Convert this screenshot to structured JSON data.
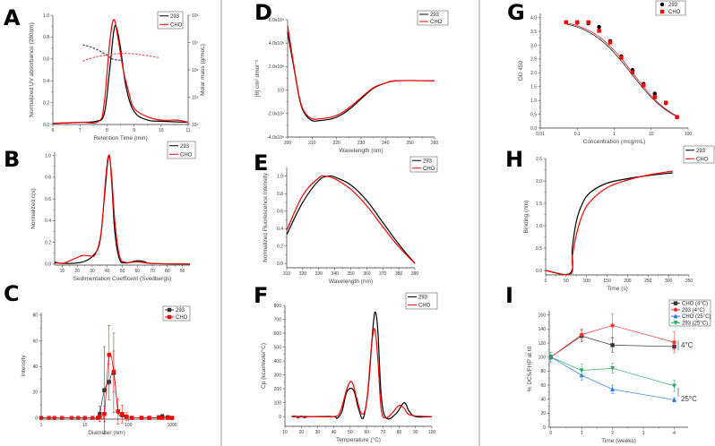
{
  "chart_data": [
    {
      "id": "A",
      "type": "line",
      "panel_label": "A",
      "xlabel": "Retention Time (min)",
      "ylabel": "Normalized UV absorbance (280nm)",
      "y2label": "Molar mass (g/moL)",
      "xlim": [
        6,
        11
      ],
      "ylim": [
        0,
        1.0
      ],
      "y2lim_log10": [
        4,
        8
      ],
      "xtick_labels": [
        "6",
        "7",
        "8",
        "9",
        "10",
        "11"
      ],
      "ytick_labels": [
        "0.0",
        "0.2",
        "0.4",
        "0.6",
        "0.8",
        "1.0"
      ],
      "y2tick_labels": [
        "10⁴",
        "10⁵",
        "10⁶",
        "10⁷",
        "10⁸"
      ],
      "y2tick_values": [
        4,
        5,
        6,
        7,
        8
      ],
      "legend": [
        "293",
        "CHO"
      ],
      "series": [
        {
          "name": "293",
          "color": "#000000",
          "x": [
            6,
            7,
            7.6,
            7.9,
            8.1,
            8.25,
            8.35,
            8.5,
            8.7,
            9,
            9.5,
            10,
            11
          ],
          "y": [
            0.01,
            0.02,
            0.03,
            0.1,
            0.5,
            0.85,
            0.89,
            0.7,
            0.35,
            0.12,
            0.04,
            0.03,
            0.02
          ]
        },
        {
          "name": "CHO",
          "color": "#ff0000",
          "x": [
            6,
            7,
            7.7,
            7.9,
            8.1,
            8.25,
            8.4,
            8.6,
            8.8,
            9,
            9.5,
            10,
            10.6,
            11
          ],
          "y": [
            0.01,
            0.02,
            0.03,
            0.2,
            0.75,
            0.96,
            0.8,
            0.5,
            0.3,
            0.15,
            0.07,
            0.04,
            0.04,
            0.02
          ]
        },
        {
          "name": "293 molar mass",
          "color": "#444444",
          "dash": true,
          "axis": "right",
          "x": [
            7.1,
            7.5,
            7.9,
            8.2,
            8.5
          ],
          "y": [
            6.92,
            6.8,
            6.6,
            6.4,
            6.35
          ]
        },
        {
          "name": "CHO molar mass",
          "color": "#ff5555",
          "dash": true,
          "axis": "right",
          "x": [
            7.1,
            7.5,
            8,
            8.5,
            8.8,
            9.3,
            9.9
          ],
          "y": [
            6.32,
            6.45,
            6.55,
            6.6,
            6.6,
            6.55,
            6.45
          ]
        }
      ]
    },
    {
      "id": "B",
      "type": "line",
      "panel_label": "B",
      "xlabel": "Sedimentation Coefficent (Svedbergs)",
      "ylabel": "Normalized c(s)",
      "xlim": [
        5,
        95
      ],
      "ylim": [
        -0.01,
        1.03
      ],
      "xtick_labels": [
        "10",
        "20",
        "30",
        "40",
        "50",
        "60",
        "70",
        "80",
        "90"
      ],
      "ytick_labels": [
        "0.0",
        "0.2",
        "0.4",
        "0.6",
        "0.8",
        "1.0"
      ],
      "legend": [
        "293",
        "CHO"
      ],
      "series": [
        {
          "name": "293",
          "color": "#000000",
          "x": [
            5,
            15,
            20,
            25,
            30,
            35,
            38,
            41,
            43,
            45,
            48,
            52,
            60,
            65,
            70,
            95
          ],
          "y": [
            0.01,
            0.005,
            0.01,
            0.025,
            0.07,
            0.2,
            0.6,
            1.0,
            0.75,
            0.3,
            0.05,
            0.01,
            0.03,
            0.02,
            0.005,
            0
          ]
        },
        {
          "name": "CHO",
          "color": "#ff0000",
          "x": [
            5,
            10,
            15,
            20,
            24,
            28,
            32,
            36,
            39,
            41,
            43,
            45,
            48,
            52,
            60,
            70,
            95
          ],
          "y": [
            0.02,
            0.005,
            0.03,
            0.06,
            0.08,
            0.075,
            0.09,
            0.3,
            0.8,
            1.0,
            0.8,
            0.4,
            0.08,
            0.015,
            0.02,
            0.005,
            0
          ]
        }
      ]
    },
    {
      "id": "C",
      "type": "line",
      "panel_label": "C",
      "xlabel": "Diameter (nm)",
      "ylabel": "Intensity",
      "xscale": "log",
      "xlim": [
        1,
        1000
      ],
      "ylim": [
        -1,
        82
      ],
      "xtick_labels": [
        "1",
        "10",
        "100",
        "1000"
      ],
      "ytick_labels": [
        "0",
        "20",
        "40",
        "60",
        "80"
      ],
      "legend": [
        "293",
        "CHO"
      ],
      "series": [
        {
          "name": "293",
          "color": "#333333",
          "marker": "square",
          "x": [
            1,
            1.5,
            2,
            3,
            5,
            7,
            10,
            15,
            20,
            22,
            28,
            36,
            46,
            58,
            72,
            90,
            120,
            200,
            300,
            500,
            600,
            800,
            1000
          ],
          "y": [
            0,
            0,
            0,
            0,
            0,
            0,
            0,
            0,
            0,
            3,
            21.5,
            28,
            35,
            5,
            2,
            1,
            0,
            0,
            0,
            0.5,
            1,
            0.5,
            0
          ],
          "err": [
            0,
            0,
            0,
            0,
            0,
            0,
            0,
            0,
            0,
            6,
            34,
            14,
            31,
            1,
            1,
            1,
            0,
            0,
            0,
            0,
            2,
            0,
            0
          ]
        },
        {
          "name": "CHO",
          "color": "#ff0000",
          "marker": "square",
          "x": [
            1,
            1.5,
            2,
            3,
            5,
            7,
            10,
            15,
            20,
            22,
            28,
            36,
            46,
            58,
            72,
            90,
            120,
            200,
            300,
            500,
            600,
            800,
            1000
          ],
          "y": [
            0,
            0,
            0,
            0,
            0,
            0,
            0,
            0,
            0,
            1,
            3,
            49,
            36,
            5,
            3,
            1,
            0,
            0,
            0,
            0,
            0,
            0,
            0
          ],
          "err": [
            0,
            0,
            0,
            0,
            0,
            0,
            0,
            0,
            0,
            1,
            6,
            23,
            16,
            10,
            7,
            3,
            0,
            0,
            0,
            0,
            0,
            0,
            0
          ]
        }
      ]
    },
    {
      "id": "D",
      "type": "line",
      "panel_label": "D",
      "xlabel": "Wavelength (nm)",
      "ylabel": "[θ] cm² dmol⁻¹",
      "xlim": [
        200,
        260
      ],
      "ylim": [
        -400000,
        600000
      ],
      "xtick_labels": [
        "200",
        "210",
        "220",
        "230",
        "240",
        "250",
        "260"
      ],
      "ytick_labels": [
        "-4.0x10⁵",
        "-2.0x10⁵",
        "0.0",
        "2.0x10⁵",
        "4.0x10⁵",
        "6.0x10⁵"
      ],
      "ytick_values": [
        -400000,
        -200000,
        0,
        200000,
        400000,
        600000
      ],
      "legend": [
        "293",
        "CHO"
      ],
      "series": [
        {
          "name": "293",
          "color": "#000000",
          "x": [
            200,
            203,
            205,
            207,
            210,
            213,
            218,
            222,
            226,
            230,
            235,
            240,
            245,
            260
          ],
          "y": [
            490000,
            140000,
            -90000,
            -200000,
            -260000,
            -260000,
            -245000,
            -210000,
            -150000,
            -75000,
            15000,
            60000,
            80000,
            80000
          ]
        },
        {
          "name": "CHO",
          "color": "#ff0000",
          "x": [
            200,
            203,
            205,
            207,
            210,
            213,
            218,
            222,
            226,
            230,
            235,
            240,
            245,
            260
          ],
          "y": [
            550000,
            150000,
            -80000,
            -190000,
            -245000,
            -245000,
            -230000,
            -195000,
            -135000,
            -65000,
            20000,
            60000,
            80000,
            80000
          ]
        }
      ]
    },
    {
      "id": "E",
      "type": "line",
      "panel_label": "E",
      "xlabel": "Wavelength (nm)",
      "ylabel": "Normalized Fluorescence Intensity",
      "xlim": [
        310,
        390
      ],
      "ylim": [
        -0.05,
        1.1
      ],
      "xtick_labels": [
        "310",
        "320",
        "330",
        "340",
        "350",
        "360",
        "370",
        "380",
        "390"
      ],
      "ytick_labels": [
        "0.0",
        "0.2",
        "0.4",
        "0.6",
        "0.8",
        "1.0"
      ],
      "legend": [
        "293",
        "CHO"
      ],
      "series": [
        {
          "name": "293",
          "color": "#000000",
          "x": [
            310,
            320,
            330,
            336,
            340,
            350,
            360,
            370,
            380,
            390
          ],
          "y": [
            0.33,
            0.7,
            0.95,
            1.0,
            0.99,
            0.9,
            0.72,
            0.47,
            0.22,
            0.0
          ]
        },
        {
          "name": "CHO",
          "color": "#ff0000",
          "x": [
            310,
            320,
            330,
            334,
            340,
            350,
            360,
            370,
            380,
            390
          ],
          "y": [
            0.38,
            0.78,
            0.98,
            1.0,
            0.97,
            0.85,
            0.66,
            0.42,
            0.19,
            0.0
          ]
        }
      ]
    },
    {
      "id": "F",
      "type": "line",
      "panel_label": "F",
      "xlabel": "Temperature (°C)",
      "ylabel": "Cp (kcal/mole/°C)",
      "xlim": [
        10,
        100
      ],
      "ylim": [
        -70,
        800
      ],
      "xtick_labels": [
        "10",
        "20",
        "30",
        "40",
        "50",
        "60",
        "70",
        "80",
        "90",
        "100"
      ],
      "ytick_labels": [
        "0",
        "100",
        "200",
        "300",
        "400",
        "500",
        "600",
        "700",
        "800"
      ],
      "legend": [
        "293",
        "CHO"
      ],
      "series": [
        {
          "name": "293",
          "color": "#000000",
          "x": [
            14,
            20,
            30,
            40,
            42,
            45,
            48,
            52,
            55,
            58,
            61,
            64,
            65.5,
            67,
            69,
            72,
            78,
            83,
            86,
            90,
            100
          ],
          "y": [
            0,
            0,
            0,
            0,
            -12,
            40,
            180,
            190,
            60,
            -10,
            200,
            650,
            750,
            600,
            150,
            -10,
            20,
            100,
            40,
            0,
            0
          ]
        },
        {
          "name": "CHO",
          "color": "#ff0000",
          "x": [
            14,
            16,
            18,
            20,
            22,
            25,
            40,
            44,
            48,
            51,
            54,
            57,
            60,
            63,
            65,
            67,
            69,
            72,
            76,
            80,
            83,
            87,
            100
          ],
          "y": [
            0,
            5,
            -10,
            5,
            -10,
            0,
            0,
            40,
            200,
            250,
            130,
            20,
            100,
            500,
            630,
            400,
            50,
            -10,
            30,
            80,
            60,
            10,
            0
          ]
        }
      ]
    },
    {
      "id": "G",
      "type": "scatter",
      "panel_label": "G",
      "xlabel": "Concentration (mcg/mL)",
      "ylabel": "OD 450",
      "xscale": "log",
      "xlim": [
        0.01,
        100
      ],
      "ylim": [
        0,
        4.15
      ],
      "xtick_labels": [
        "0.01",
        "0.1",
        "1",
        "10",
        "100"
      ],
      "ytick_labels": [
        "0.0",
        "0.5",
        "1.0",
        "1.5",
        "2.0",
        "2.5",
        "3.0",
        "3.5",
        "4.0"
      ],
      "legend": [
        "293",
        "CHO"
      ],
      "series": [
        {
          "name": "293",
          "color": "#000000",
          "marker": "circle",
          "nolines": true,
          "x": [
            0.05,
            0.1,
            0.2,
            0.39,
            0.78,
            1.56,
            3.13,
            6.25,
            12.5,
            25,
            50
          ],
          "y": [
            3.83,
            3.81,
            3.79,
            3.66,
            3.15,
            2.6,
            2.1,
            1.6,
            1.25,
            0.9,
            0.4
          ],
          "fit": {
            "top": 3.95,
            "bottom": 0,
            "ec50": 2.9,
            "hill": 0.75
          }
        },
        {
          "name": "CHO",
          "color": "#ff0000",
          "marker": "square",
          "nolines": true,
          "x": [
            0.05,
            0.1,
            0.2,
            0.39,
            0.78,
            1.56,
            3.13,
            6.25,
            12.5,
            25,
            50
          ],
          "y": [
            3.83,
            3.83,
            3.83,
            3.52,
            3.1,
            2.55,
            2.02,
            1.55,
            1.12,
            0.92,
            0.4
          ],
          "fit": {
            "top": 3.97,
            "bottom": 0,
            "ec50": 3.2,
            "hill": 0.76
          }
        }
      ]
    },
    {
      "id": "H",
      "type": "line",
      "panel_label": "H",
      "xlabel": "Time (s)",
      "ylabel": "Binding (nm)",
      "xlim": [
        0,
        350
      ],
      "ylim": [
        -0.1,
        2.5
      ],
      "xtick_labels": [
        "0",
        "50",
        "100",
        "150",
        "200",
        "250",
        "300",
        "350"
      ],
      "ytick_labels": [
        "0.0",
        "0.5",
        "1.0",
        "1.5",
        "2.0",
        "2.5"
      ],
      "legend": [
        "293",
        "CHO"
      ],
      "series": [
        {
          "name": "293",
          "color": "#000000",
          "x": [
            0,
            60,
            65,
            75,
            90,
            110,
            150,
            200,
            250,
            310
          ],
          "y": [
            0,
            -0.06,
            0.5,
            1.1,
            1.5,
            1.75,
            1.95,
            2.05,
            2.12,
            2.18
          ]
        },
        {
          "name": "CHO",
          "color": "#ff0000",
          "x": [
            0,
            60,
            65,
            75,
            90,
            110,
            150,
            200,
            250,
            310
          ],
          "y": [
            0,
            -0.08,
            0.3,
            0.8,
            1.25,
            1.55,
            1.85,
            2.02,
            2.13,
            2.22
          ]
        }
      ]
    },
    {
      "id": "I",
      "type": "line",
      "panel_label": "I",
      "xlabel": "Time (weeks)",
      "ylabel": "% DCS/FHP at t0",
      "xlim": [
        -0.05,
        4.45
      ],
      "ylim": [
        0,
        166
      ],
      "xtick_labels": [
        "0",
        "1",
        "2",
        "3",
        "4"
      ],
      "ytick_labels": [
        "0",
        "20",
        "40",
        "60",
        "80",
        "100",
        "120",
        "140",
        "160"
      ],
      "legend": [
        "CHO (4°C)",
        "293 (4°C)",
        "CHO (25°C)",
        "293 (25°C)"
      ],
      "annotations": [
        "4°C",
        "25°C"
      ],
      "series": [
        {
          "name": "CHO (4°C)",
          "color": "#333333",
          "marker": "square",
          "straight": true,
          "x": [
            0,
            1,
            2,
            4
          ],
          "y": [
            100,
            130,
            117,
            115
          ],
          "err": [
            3,
            8,
            10,
            4
          ]
        },
        {
          "name": "293 (4°C)",
          "color": "#ff3333",
          "marker": "circle",
          "straight": true,
          "x": [
            0,
            1,
            2,
            4
          ],
          "y": [
            100,
            132,
            145,
            121
          ],
          "err": [
            0,
            8,
            17,
            15
          ]
        },
        {
          "name": "CHO (25°C)",
          "color": "#2277ee",
          "marker": "triangle",
          "straight": true,
          "x": [
            0,
            1,
            2,
            4
          ],
          "y": [
            100,
            74,
            54,
            39
          ],
          "err": [
            7,
            7,
            6,
            3
          ]
        },
        {
          "name": "293 (25°C)",
          "color": "#22aa66",
          "marker": "triangle-down",
          "straight": true,
          "x": [
            0,
            1,
            2,
            4
          ],
          "y": [
            100,
            81,
            84,
            59
          ],
          "err": [
            7,
            9,
            7,
            8
          ]
        }
      ]
    }
  ]
}
